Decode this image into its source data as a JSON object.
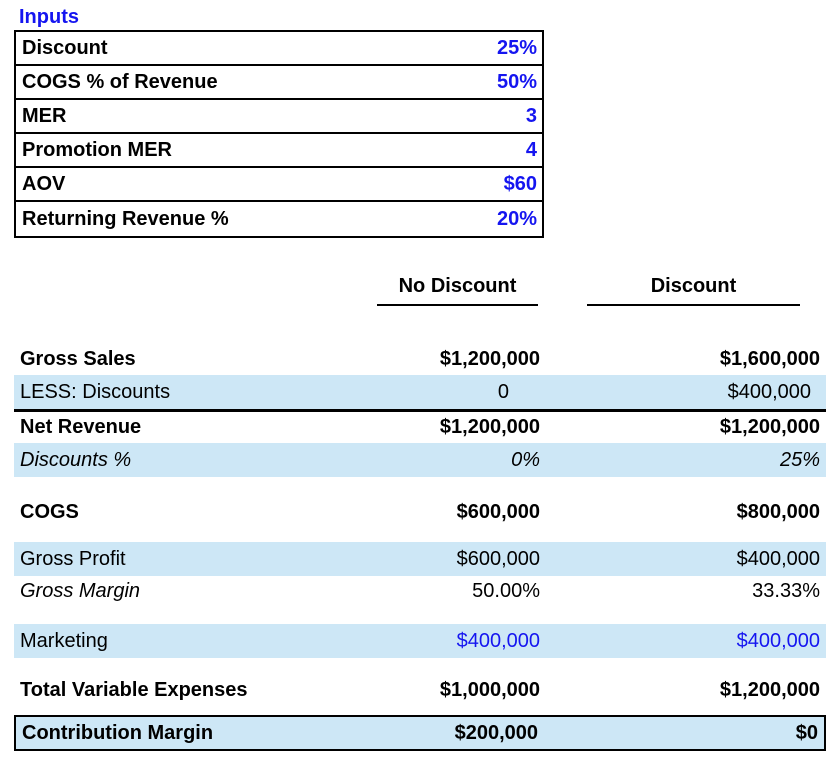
{
  "colors": {
    "input_blue": "#1515f0",
    "highlight_bg": "#cde7f6",
    "border_black": "#000000"
  },
  "inputs": {
    "title": "Inputs",
    "rows": [
      {
        "label": "Discount",
        "value": "25%"
      },
      {
        "label": "COGS % of Revenue",
        "value": "50%"
      },
      {
        "label": "MER",
        "value": "3"
      },
      {
        "label": "Promotion MER",
        "value": "4"
      },
      {
        "label": "AOV",
        "value": "$60"
      },
      {
        "label": "Returning Revenue %",
        "value": "20%"
      }
    ]
  },
  "comparison": {
    "columns": [
      "No Discount",
      "Discount"
    ],
    "rows": [
      {
        "label": "Gross Sales",
        "values": [
          "$1,200,000",
          "$1,600,000"
        ],
        "style": "bold"
      },
      {
        "label": "LESS: Discounts",
        "values": [
          "0",
          "$400,000"
        ],
        "style": "highlight rule-after"
      },
      {
        "label": "Net Revenue",
        "values": [
          "$1,200,000",
          "$1,200,000"
        ],
        "style": "bold"
      },
      {
        "label": "Discounts %",
        "values": [
          "0%",
          "25%"
        ],
        "style": "highlight italic"
      },
      {
        "label": "COGS",
        "values": [
          "$600,000",
          "$800,000"
        ],
        "style": "bold"
      },
      {
        "label": "Gross Profit",
        "values": [
          "$600,000",
          "$400,000"
        ],
        "style": "highlight"
      },
      {
        "label": "Gross Margin",
        "values": [
          "50.00%",
          "33.33%"
        ],
        "style": "italic-label"
      },
      {
        "label": "Marketing",
        "values": [
          "$400,000",
          "$400,000"
        ],
        "style": "highlight blue-values"
      },
      {
        "label": "Total Variable Expenses",
        "values": [
          "$1,000,000",
          "$1,200,000"
        ],
        "style": "bold"
      },
      {
        "label": "Contribution Margin",
        "values": [
          "$200,000",
          "$0"
        ],
        "style": "highlight bold boxed"
      }
    ]
  }
}
